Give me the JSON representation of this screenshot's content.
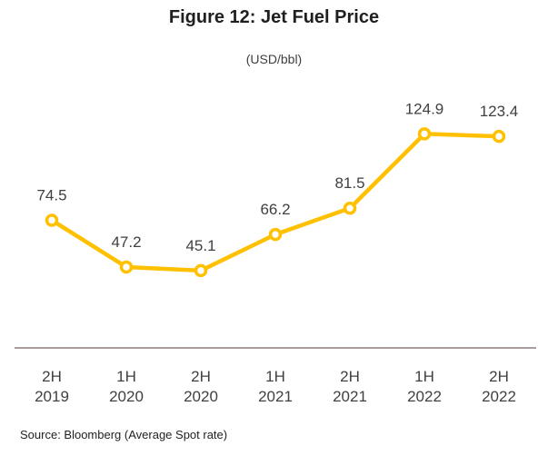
{
  "chart_data": {
    "type": "line",
    "title": "Figure 12: Jet Fuel Price",
    "subtitle": "(USD/bbl)",
    "categories": [
      [
        "2H",
        "2019"
      ],
      [
        "1H",
        "2020"
      ],
      [
        "2H",
        "2020"
      ],
      [
        "1H",
        "2021"
      ],
      [
        "2H",
        "2021"
      ],
      [
        "1H",
        "2022"
      ],
      [
        "2H",
        "2022"
      ]
    ],
    "series": [
      {
        "values": [
          74.5,
          47.2,
          45.1,
          66.2,
          81.5,
          124.9,
          123.4
        ],
        "labels": [
          "74.5",
          "47.2",
          "45.1",
          "66.2",
          "81.5",
          "124.9",
          "123.4"
        ],
        "color": "#FFC000"
      }
    ],
    "ylim": [
      0,
      150
    ],
    "grid": false,
    "axis_color": "#8c7b7b",
    "source": "Source: Bloomberg  (Average Spot rate)"
  }
}
